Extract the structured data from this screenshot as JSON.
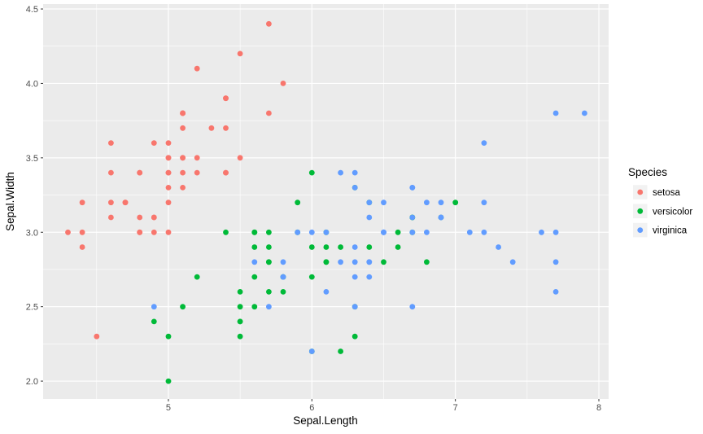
{
  "chart_data": {
    "type": "scatter",
    "title": "",
    "xlabel": "Sepal.Length",
    "ylabel": "Sepal.Width",
    "xlim": [
      4.127,
      8.068
    ],
    "ylim": [
      1.88,
      4.533
    ],
    "grid": true,
    "panel_bg": "#EBEBEB",
    "grid_color": "#FFFFFF",
    "tick_color": "#333333",
    "x_ticks": {
      "values": [
        5,
        6,
        7,
        8
      ],
      "labels": [
        "5",
        "6",
        "7",
        "8"
      ]
    },
    "y_ticks": {
      "values": [
        2.0,
        2.5,
        3.0,
        3.5,
        4.0,
        4.5
      ],
      "labels": [
        "2.0",
        "2.5",
        "3.0",
        "3.5",
        "4.0",
        "4.5"
      ]
    },
    "x_minor": [
      4.5,
      5.5,
      6.5,
      7.5
    ],
    "y_minor": [
      2.25,
      2.75,
      3.25,
      3.75,
      4.25
    ],
    "legend": {
      "title": "Species",
      "position": "right",
      "key_bg": "#F2F2F2"
    },
    "series": [
      {
        "name": "setosa",
        "color": "#F8766D",
        "points": [
          [
            5.1,
            3.5
          ],
          [
            4.9,
            3.0
          ],
          [
            4.7,
            3.2
          ],
          [
            4.6,
            3.1
          ],
          [
            5.0,
            3.6
          ],
          [
            5.4,
            3.9
          ],
          [
            4.6,
            3.4
          ],
          [
            5.0,
            3.4
          ],
          [
            4.4,
            2.9
          ],
          [
            4.9,
            3.1
          ],
          [
            5.4,
            3.7
          ],
          [
            4.8,
            3.4
          ],
          [
            4.8,
            3.0
          ],
          [
            4.3,
            3.0
          ],
          [
            5.8,
            4.0
          ],
          [
            5.7,
            4.4
          ],
          [
            5.4,
            3.9
          ],
          [
            5.1,
            3.5
          ],
          [
            5.7,
            3.8
          ],
          [
            5.1,
            3.8
          ],
          [
            5.4,
            3.4
          ],
          [
            5.1,
            3.7
          ],
          [
            4.6,
            3.6
          ],
          [
            5.1,
            3.3
          ],
          [
            4.8,
            3.4
          ],
          [
            5.0,
            3.0
          ],
          [
            5.0,
            3.4
          ],
          [
            5.2,
            3.5
          ],
          [
            5.2,
            3.4
          ],
          [
            4.7,
            3.2
          ],
          [
            4.8,
            3.1
          ],
          [
            5.4,
            3.4
          ],
          [
            5.2,
            4.1
          ],
          [
            5.5,
            4.2
          ],
          [
            4.9,
            3.1
          ],
          [
            5.0,
            3.2
          ],
          [
            5.5,
            3.5
          ],
          [
            4.9,
            3.6
          ],
          [
            4.4,
            3.0
          ],
          [
            5.1,
            3.4
          ],
          [
            5.0,
            3.5
          ],
          [
            4.5,
            2.3
          ],
          [
            4.4,
            3.2
          ],
          [
            5.0,
            3.5
          ],
          [
            5.1,
            3.8
          ],
          [
            4.8,
            3.0
          ],
          [
            5.1,
            3.8
          ],
          [
            4.6,
            3.2
          ],
          [
            5.3,
            3.7
          ],
          [
            5.0,
            3.3
          ]
        ]
      },
      {
        "name": "versicolor",
        "color": "#00BA38",
        "points": [
          [
            7.0,
            3.2
          ],
          [
            6.4,
            3.2
          ],
          [
            6.9,
            3.1
          ],
          [
            5.5,
            2.3
          ],
          [
            6.5,
            2.8
          ],
          [
            5.7,
            2.8
          ],
          [
            6.3,
            3.3
          ],
          [
            4.9,
            2.4
          ],
          [
            6.6,
            2.9
          ],
          [
            5.2,
            2.7
          ],
          [
            5.0,
            2.0
          ],
          [
            5.9,
            3.0
          ],
          [
            6.0,
            2.2
          ],
          [
            6.1,
            2.9
          ],
          [
            5.6,
            2.9
          ],
          [
            6.7,
            3.1
          ],
          [
            5.6,
            3.0
          ],
          [
            5.8,
            2.7
          ],
          [
            6.2,
            2.2
          ],
          [
            5.6,
            2.5
          ],
          [
            5.9,
            3.2
          ],
          [
            6.1,
            2.8
          ],
          [
            6.3,
            2.5
          ],
          [
            6.1,
            2.8
          ],
          [
            6.4,
            2.9
          ],
          [
            6.6,
            3.0
          ],
          [
            6.8,
            2.8
          ],
          [
            6.7,
            3.0
          ],
          [
            6.0,
            2.9
          ],
          [
            5.7,
            2.6
          ],
          [
            5.5,
            2.4
          ],
          [
            5.5,
            2.4
          ],
          [
            5.8,
            2.7
          ],
          [
            6.0,
            2.7
          ],
          [
            5.4,
            3.0
          ],
          [
            6.0,
            3.4
          ],
          [
            6.7,
            3.1
          ],
          [
            6.3,
            2.3
          ],
          [
            5.6,
            3.0
          ],
          [
            5.5,
            2.5
          ],
          [
            5.5,
            2.6
          ],
          [
            6.1,
            3.0
          ],
          [
            5.8,
            2.6
          ],
          [
            5.0,
            2.3
          ],
          [
            5.6,
            2.7
          ],
          [
            5.7,
            3.0
          ],
          [
            5.7,
            2.9
          ],
          [
            6.2,
            2.9
          ],
          [
            5.1,
            2.5
          ],
          [
            5.7,
            2.8
          ]
        ]
      },
      {
        "name": "virginica",
        "color": "#619CFF",
        "points": [
          [
            6.3,
            3.3
          ],
          [
            5.8,
            2.7
          ],
          [
            7.1,
            3.0
          ],
          [
            6.3,
            2.9
          ],
          [
            6.5,
            3.0
          ],
          [
            7.6,
            3.0
          ],
          [
            4.9,
            2.5
          ],
          [
            7.3,
            2.9
          ],
          [
            6.7,
            2.5
          ],
          [
            7.2,
            3.6
          ],
          [
            6.5,
            3.2
          ],
          [
            6.4,
            2.7
          ],
          [
            6.8,
            3.0
          ],
          [
            5.7,
            2.5
          ],
          [
            5.8,
            2.8
          ],
          [
            6.4,
            3.2
          ],
          [
            6.5,
            3.0
          ],
          [
            7.7,
            3.8
          ],
          [
            7.7,
            2.6
          ],
          [
            6.0,
            2.2
          ],
          [
            6.9,
            3.2
          ],
          [
            5.6,
            2.8
          ],
          [
            7.7,
            2.8
          ],
          [
            6.3,
            2.7
          ],
          [
            6.7,
            3.3
          ],
          [
            7.2,
            3.2
          ],
          [
            6.2,
            2.8
          ],
          [
            6.1,
            3.0
          ],
          [
            6.4,
            2.8
          ],
          [
            7.2,
            3.0
          ],
          [
            7.4,
            2.8
          ],
          [
            7.9,
            3.8
          ],
          [
            6.4,
            2.8
          ],
          [
            6.3,
            2.8
          ],
          [
            6.1,
            2.6
          ],
          [
            7.7,
            3.0
          ],
          [
            6.3,
            3.4
          ],
          [
            6.4,
            3.1
          ],
          [
            6.0,
            3.0
          ],
          [
            6.9,
            3.1
          ],
          [
            6.7,
            3.1
          ],
          [
            6.9,
            3.1
          ],
          [
            5.8,
            2.7
          ],
          [
            6.8,
            3.2
          ],
          [
            6.7,
            3.3
          ],
          [
            6.7,
            3.0
          ],
          [
            6.3,
            2.5
          ],
          [
            6.5,
            3.0
          ],
          [
            6.2,
            3.4
          ],
          [
            5.9,
            3.0
          ]
        ]
      }
    ]
  }
}
